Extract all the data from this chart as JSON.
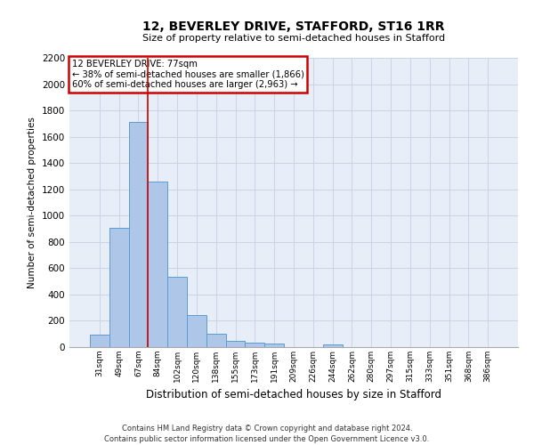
{
  "title": "12, BEVERLEY DRIVE, STAFFORD, ST16 1RR",
  "subtitle": "Size of property relative to semi-detached houses in Stafford",
  "xlabel": "Distribution of semi-detached houses by size in Stafford",
  "ylabel": "Number of semi-detached properties",
  "footnote1": "Contains HM Land Registry data © Crown copyright and database right 2024.",
  "footnote2": "Contains public sector information licensed under the Open Government Licence v3.0.",
  "bar_labels": [
    "31sqm",
    "49sqm",
    "67sqm",
    "84sqm",
    "102sqm",
    "120sqm",
    "138sqm",
    "155sqm",
    "173sqm",
    "191sqm",
    "209sqm",
    "226sqm",
    "244sqm",
    "262sqm",
    "280sqm",
    "297sqm",
    "315sqm",
    "333sqm",
    "351sqm",
    "368sqm",
    "386sqm"
  ],
  "bar_values": [
    97,
    910,
    1710,
    1260,
    535,
    243,
    101,
    50,
    33,
    27,
    0,
    0,
    20,
    0,
    0,
    0,
    0,
    0,
    0,
    0,
    0
  ],
  "bar_color": "#aec6e8",
  "bar_edge_color": "#5b9bd5",
  "grid_color": "#c8d4e8",
  "bg_color": "#e8eef8",
  "annotation_title": "12 BEVERLEY DRIVE: 77sqm",
  "annotation_line1": "← 38% of semi-detached houses are smaller (1,866)",
  "annotation_line2": "60% of semi-detached houses are larger (2,963) →",
  "annotation_box_color": "#ffffff",
  "annotation_border_color": "#cc0000",
  "red_line_x": 2.5,
  "ylim": [
    0,
    2200
  ],
  "yticks": [
    0,
    200,
    400,
    600,
    800,
    1000,
    1200,
    1400,
    1600,
    1800,
    2000,
    2200
  ]
}
